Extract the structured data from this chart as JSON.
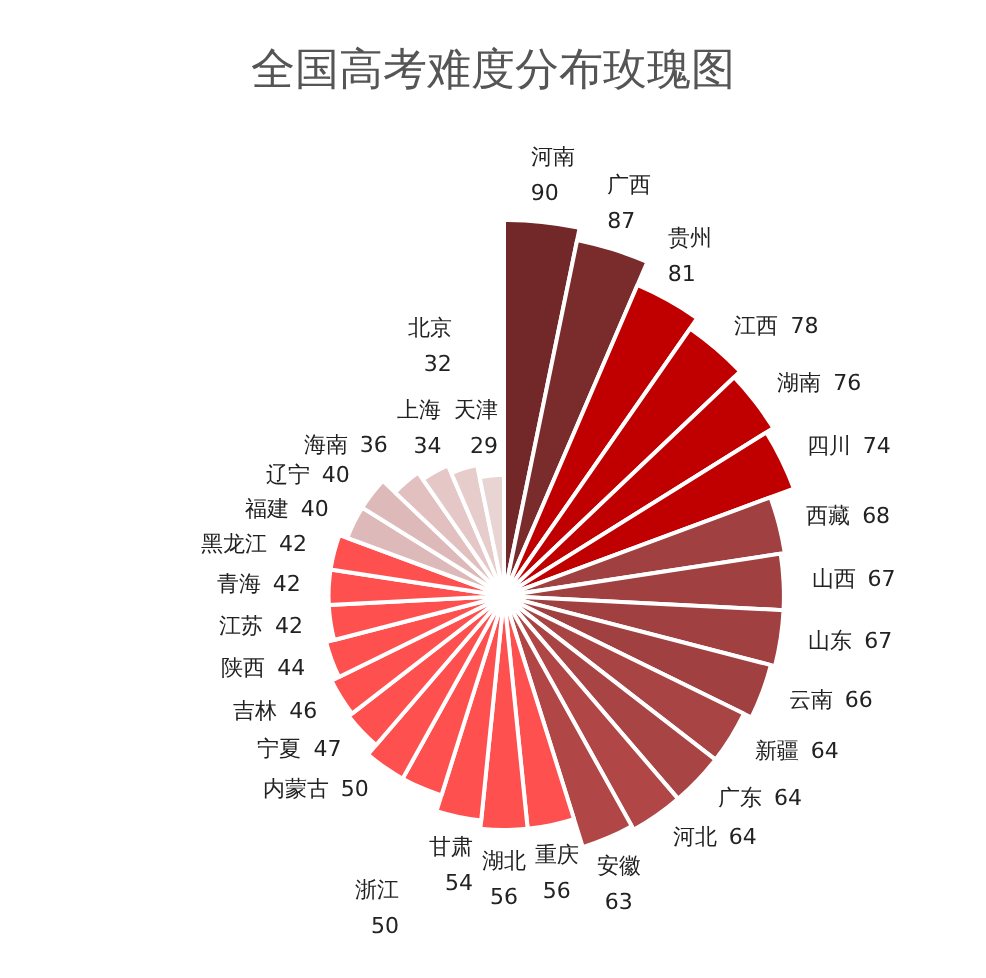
{
  "chart_data": {
    "type": "other",
    "title": "全国高考难度分布玫瑰图",
    "data_labels": true,
    "categories": [
      "河南",
      "广西",
      "贵州",
      "江西",
      "湖南",
      "四川",
      "西藏",
      "山西",
      "山东",
      "云南",
      "新疆",
      "广东",
      "河北",
      "安徽",
      "重庆",
      "湖北",
      "甘肃",
      "浙江",
      "内蒙古",
      "宁夏",
      "吉林",
      "陕西",
      "江苏",
      "青海",
      "黑龙江",
      "福建",
      "辽宁",
      "海南",
      "上海",
      "北京",
      "天津"
    ],
    "values": [
      90,
      87,
      81,
      78,
      76,
      74,
      68,
      67,
      67,
      66,
      64,
      64,
      64,
      63,
      56,
      56,
      54,
      50,
      50,
      47,
      46,
      44,
      42,
      42,
      42,
      40,
      40,
      36,
      34,
      32,
      29
    ],
    "colors": [
      "#722828",
      "#7a2c2c",
      "#c00000",
      "#c00000",
      "#c00000",
      "#c00000",
      "#a04040",
      "#a04040",
      "#a04040",
      "#a04040",
      "#a84444",
      "#a84444",
      "#b04646",
      "#b04646",
      "#ff5050",
      "#ff5050",
      "#ff5050",
      "#ff5050",
      "#ff5050",
      "#ff5050",
      "#ff5050",
      "#ff5050",
      "#ff5050",
      "#ff5050",
      "#ff5050",
      "#deb9b9",
      "#deb9b9",
      "#e2c0c0",
      "#e5c7c7",
      "#e7cccc",
      "#e9d4d4"
    ]
  }
}
